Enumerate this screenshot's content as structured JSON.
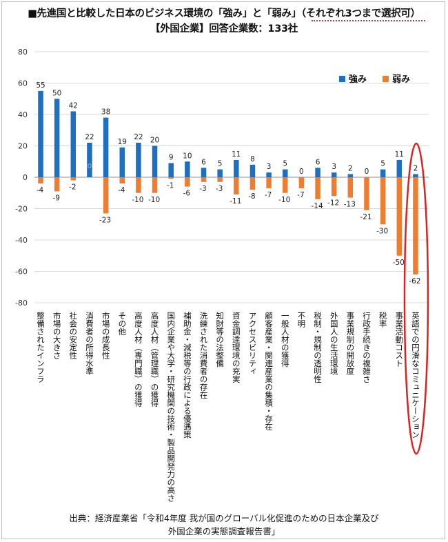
{
  "header": {
    "title_line1": "■先進国と比較した日本のビジネス環境の「強み」と「弱み」（それぞれ3つまで選択可）",
    "title_line2": "【外国企業】回答企業数：133社"
  },
  "footer": {
    "source_line1": "出典：経済産業省「令和4年度 我が国のグローバル化促進のための日本企業及び",
    "source_line2": "外国企業の実態調査報告書」"
  },
  "colors": {
    "strength": "#1f6fc0",
    "weakness": "#ed7d31",
    "highlight": "#e02020",
    "grid": "#d9d9d9"
  },
  "chart_data": {
    "type": "bar",
    "ylim": [
      -80,
      80
    ],
    "yticks": [
      80,
      60,
      40,
      20,
      0,
      -20,
      -40,
      -60,
      -80
    ],
    "grid": true,
    "legend_position": "top-right",
    "highlighted_category_index": 23,
    "categories": [
      "整備されたインフラ",
      "市場の大きさ",
      "社会の安定性",
      "消費者の所得水準",
      "市場の成長性",
      "その他",
      "高度人材（専門職）の獲得",
      "高度人材（管理職）の獲得",
      "国内企業や大学・研究機関の技術・製品開発力の高さ",
      "補助金・減税等の行政による優遇策",
      "洗練された消費者の存在",
      "知財等の法整備",
      "資金調達環境の充実",
      "アクセスビリティ",
      "顧客産業・関連産業の集積・存在",
      "一般人材の獲得",
      "不明",
      "税制・規制の透明性",
      "外国人の生活環境",
      "事業規制の開放度",
      "行政手続きの複雑さ",
      "税率",
      "事業活動コスト",
      "英語での円滑なコミュニケーション"
    ],
    "series": [
      {
        "name": "強み",
        "values": [
          55,
          50,
          42,
          22,
          38,
          19,
          22,
          20,
          9,
          10,
          6,
          5,
          11,
          8,
          3,
          5,
          0,
          6,
          3,
          2,
          0,
          5,
          11,
          2
        ]
      },
      {
        "name": "弱み",
        "values": [
          -4,
          -9,
          -2,
          0,
          -23,
          -4,
          -10,
          -10,
          -1,
          -6,
          -3,
          -3,
          -11,
          -8,
          -7,
          -10,
          -7,
          -14,
          -12,
          -13,
          -21,
          -30,
          -50,
          -62
        ]
      }
    ],
    "strength_labels": [
      "55",
      "50",
      "42",
      "22",
      "38",
      "19",
      "22",
      "20",
      "9",
      "10",
      "6",
      "5",
      "11",
      "8",
      "3",
      "5",
      "0",
      "6",
      "3",
      "2",
      "0",
      "5",
      "11",
      "2"
    ],
    "weakness_labels": [
      "-4",
      "-9",
      "-2",
      "",
      "-23",
      "-4",
      "-10",
      "-10",
      "-1",
      "-6",
      "-3",
      "-3",
      "-11",
      "-8",
      "-7",
      "-10",
      "-7",
      "-14",
      "-12",
      "-13",
      "-21",
      "-30",
      "-50",
      "-62"
    ],
    "weakness_zero_mark": "0"
  }
}
